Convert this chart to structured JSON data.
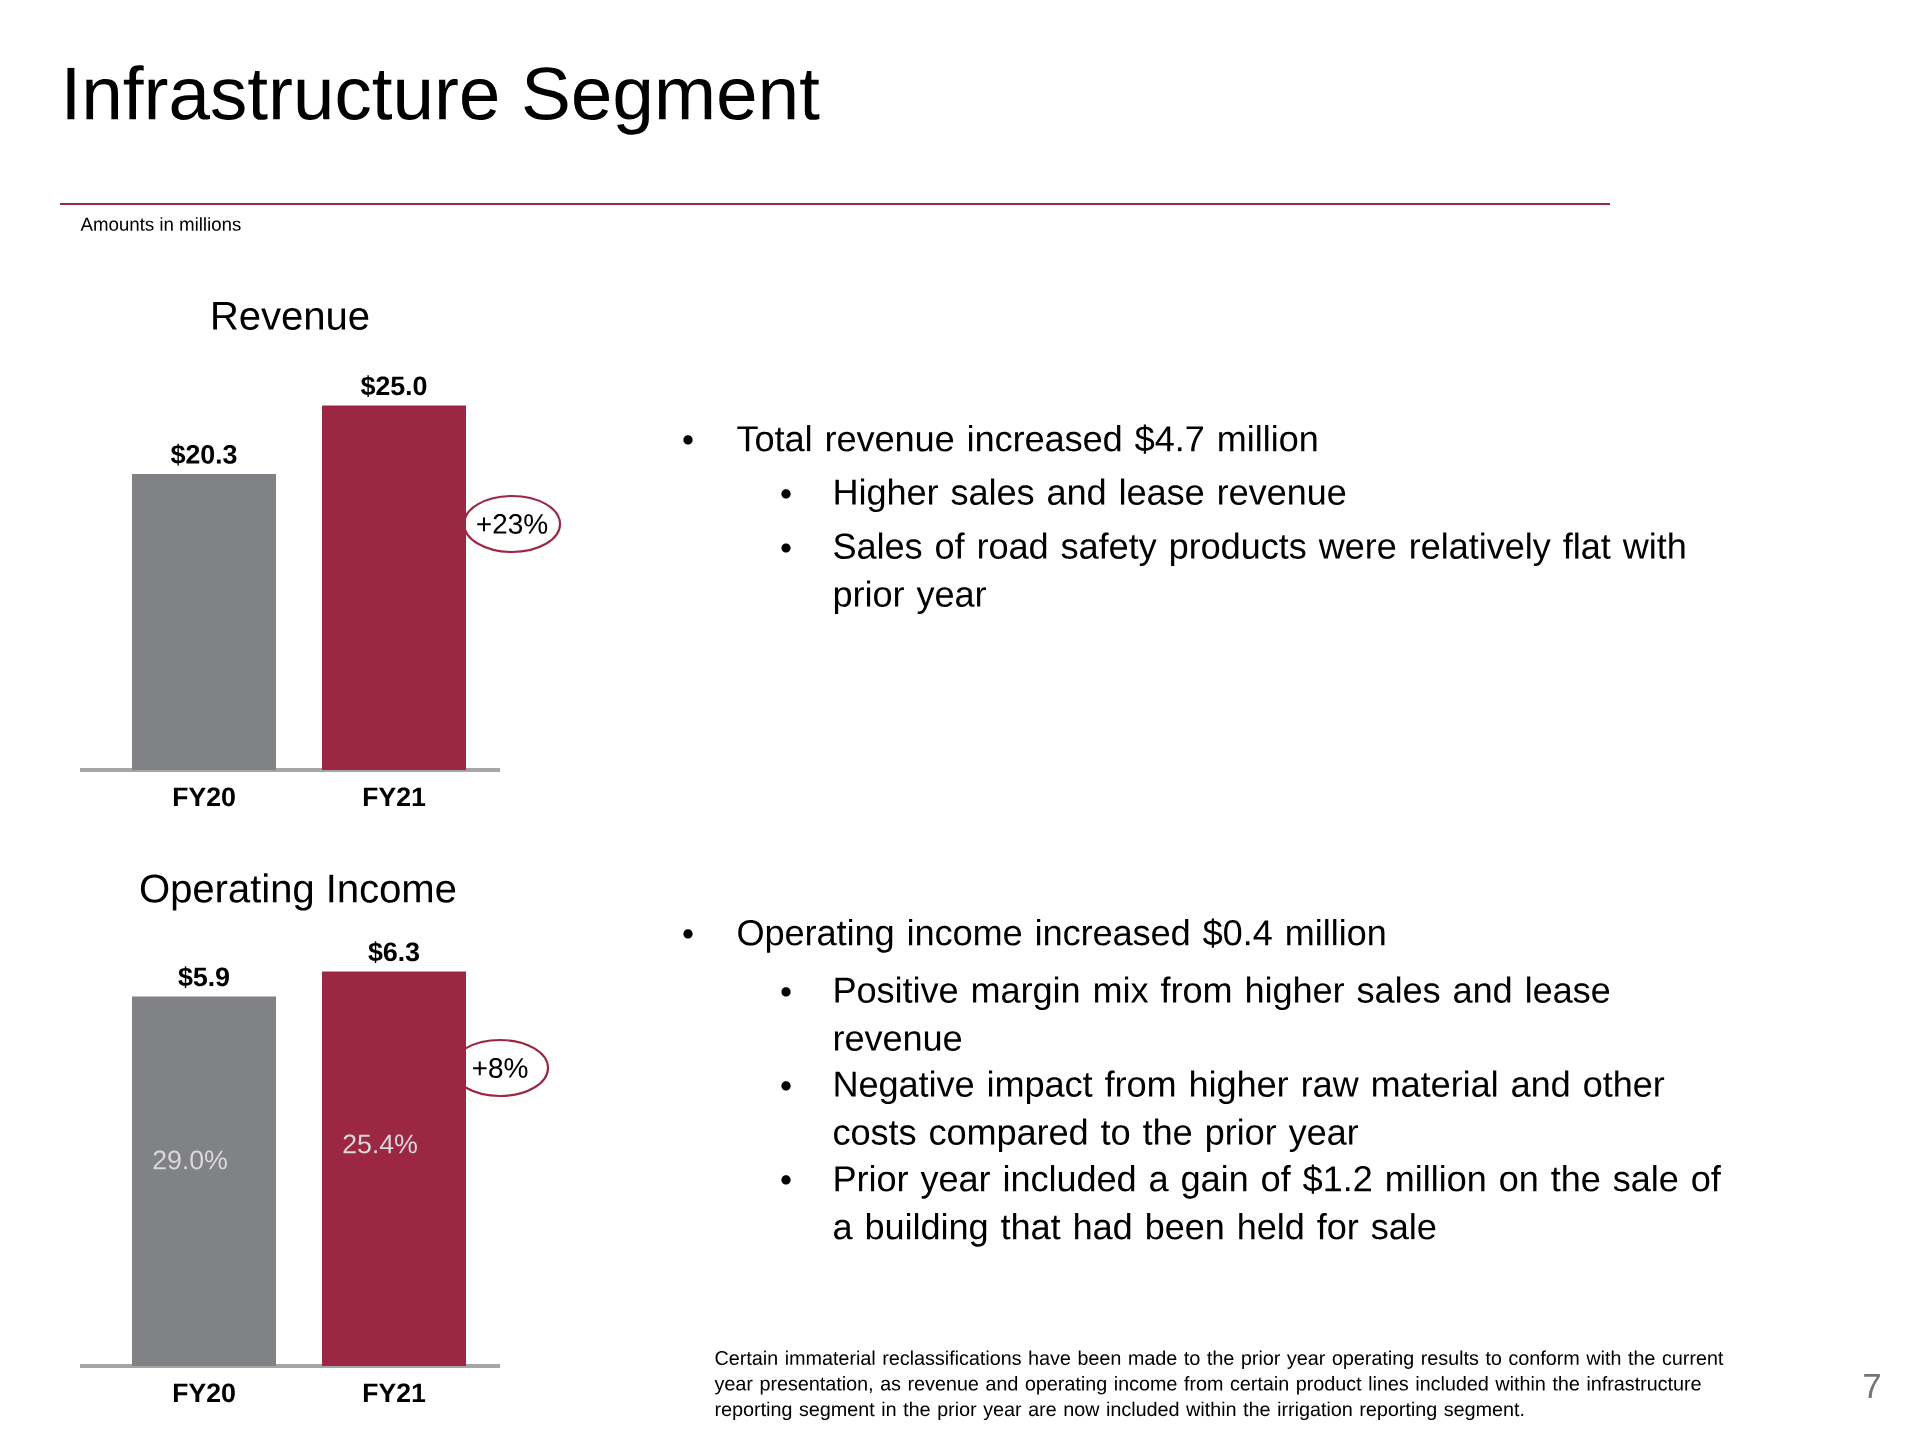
{
  "chart_data": [
    {
      "type": "bar",
      "title": "Revenue",
      "categories": [
        "FY20",
        "FY21"
      ],
      "values": [
        20.3,
        25.0
      ],
      "colors": [
        "#808285",
        "#9b2743"
      ],
      "value_labels": [
        "$20.3",
        "$25.0"
      ],
      "annotations": [
        "Infrastructure Segment",
        "Amounts in millions",
        "+23%",
        "Total revenue increased $4.7 million",
        "Higher sales and lease revenue",
        "Sales of road safety products were relatively flat with prior year"
      ]
    },
    {
      "type": "bar",
      "title": "Operating Income",
      "categories": [
        "FY20",
        "FY21"
      ],
      "values": [
        5.9,
        6.3
      ],
      "colors": [
        "#808285",
        "#9b2743"
      ],
      "value_labels": [
        "$5.9",
        "$6.3"
      ],
      "annotations": [
        "+8%",
        "29.0%",
        "25.4%",
        "Operating income increased $0.4 million",
        "Positive margin mix from higher sales and lease revenue",
        "Negative impact from higher raw material and other costs compared to the prior year",
        "Prior year included a gain of $1.2 million on the sale of a building that had been held for sale",
        "Certain immaterial reclassifications have been made to the prior year operating results to conform with the current year presentation, as revenue and operating income from certain product lines included within the infrastructure reporting segment in the prior year are now included within the irrigation reporting segment.",
        "7"
      ]
    }
  ]
}
